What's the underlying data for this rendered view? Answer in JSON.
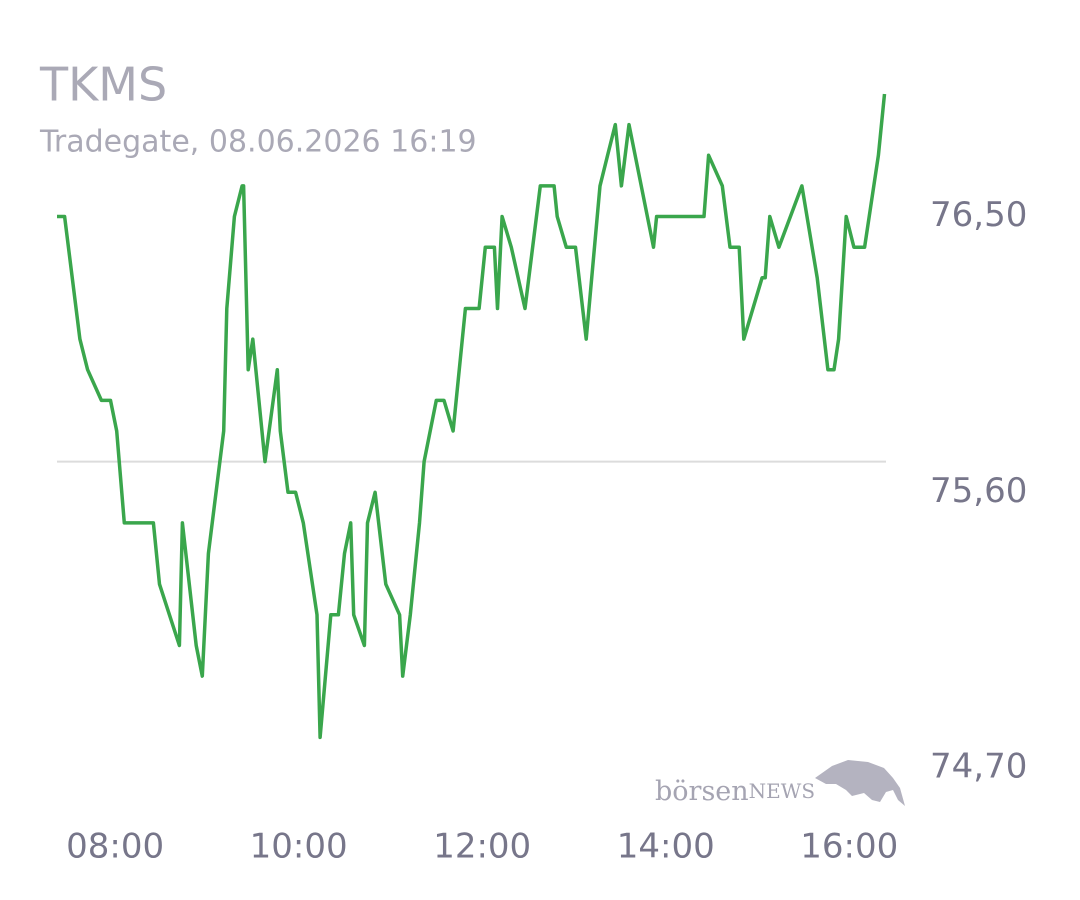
{
  "chart_data": {
    "type": "line",
    "title": "TKMS",
    "subtitle": "Tradegate, 08.06.2026 16:19",
    "logo": {
      "brand": "börsen",
      "suffix": "NEWS"
    },
    "x": [
      "07:22",
      "07:27",
      "07:37",
      "07:42",
      "07:51",
      "07:57",
      "08:01",
      "08:06",
      "08:25",
      "08:29",
      "08:42",
      "08:44",
      "08:53",
      "08:57",
      "09:01",
      "09:11",
      "09:13",
      "09:18",
      "09:23",
      "09:24",
      "09:27",
      "09:30",
      "09:38",
      "09:46",
      "09:48",
      "09:53",
      "09:58",
      "10:03",
      "10:12",
      "10:14",
      "10:21",
      "10:26",
      "10:30",
      "10:34",
      "10:36",
      "10:43",
      "10:45",
      "10:50",
      "10:57",
      "11:06",
      "11:08",
      "11:13",
      "11:19",
      "11:22",
      "11:30",
      "11:35",
      "11:41",
      "11:49",
      "11:58",
      "12:02",
      "12:08",
      "12:10",
      "12:13",
      "12:19",
      "12:28",
      "12:38",
      "12:47",
      "12:49",
      "12:55",
      "13:01",
      "13:08",
      "13:17",
      "13:22",
      "13:27",
      "13:31",
      "13:36",
      "13:52",
      "13:54",
      "14:25",
      "14:28",
      "14:37",
      "14:42",
      "14:48",
      "14:51",
      "15:03",
      "15:05",
      "15:08",
      "15:14",
      "15:29",
      "15:39",
      "15:46",
      "15:50",
      "15:53",
      "15:58",
      "16:03",
      "16:10",
      "16:19",
      "16:23"
    ],
    "series": [
      {
        "name": "TKMS",
        "color": "#3aa64c",
        "values": [
          76.5,
          76.5,
          76.1,
          76.0,
          75.9,
          75.9,
          75.8,
          75.5,
          75.5,
          75.3,
          75.1,
          75.5,
          75.1,
          75.0,
          75.4,
          75.8,
          76.2,
          76.5,
          76.6,
          76.6,
          76.0,
          76.1,
          75.7,
          76.0,
          75.8,
          75.6,
          75.6,
          75.5,
          75.2,
          74.8,
          75.2,
          75.2,
          75.4,
          75.5,
          75.2,
          75.1,
          75.5,
          75.6,
          75.3,
          75.2,
          75.0,
          75.2,
          75.5,
          75.7,
          75.9,
          75.9,
          75.8,
          76.2,
          76.2,
          76.4,
          76.4,
          76.2,
          76.5,
          76.4,
          76.2,
          76.6,
          76.6,
          76.5,
          76.4,
          76.4,
          76.1,
          76.6,
          76.7,
          76.8,
          76.6,
          76.8,
          76.4,
          76.5,
          76.5,
          76.7,
          76.6,
          76.4,
          76.4,
          76.1,
          76.3,
          76.3,
          76.5,
          76.4,
          76.6,
          76.3,
          76.0,
          76.0,
          76.1,
          76.5,
          76.4,
          76.4,
          76.7,
          76.9
        ]
      }
    ],
    "reference_line": 75.7,
    "xlim": [
      "07:22",
      "16:24"
    ],
    "xticks": [
      "08:00",
      "10:00",
      "12:00",
      "14:00",
      "16:00"
    ],
    "ylim": [
      74.7,
      76.9
    ],
    "yticks": [
      {
        "value": 74.7,
        "label": "74,70"
      },
      {
        "value": 75.6,
        "label": "75,60"
      },
      {
        "value": 76.5,
        "label": "76,50"
      }
    ],
    "grid": false
  }
}
